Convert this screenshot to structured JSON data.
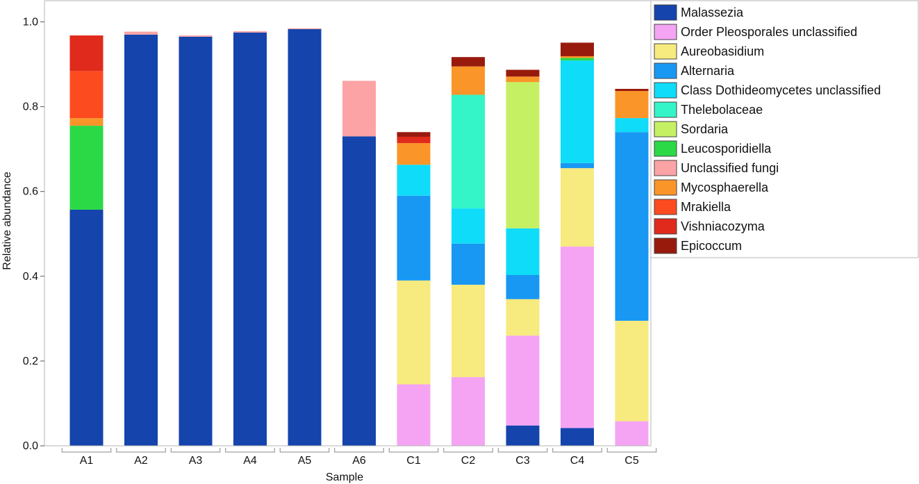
{
  "chart_data": {
    "type": "bar",
    "stacked": true,
    "xlabel": "Sample",
    "ylabel": "Relative abundance",
    "ylim": [
      0,
      1.05
    ],
    "yticks": [
      "0.0",
      "0.2",
      "0.4",
      "0.6",
      "0.8",
      "1.0"
    ],
    "legend_position": "right",
    "grid": false,
    "categories": [
      "A1",
      "A2",
      "A3",
      "A4",
      "A5",
      "A6",
      "C1",
      "C2",
      "C3",
      "C4",
      "C5"
    ],
    "series": [
      {
        "name": "Malassezia",
        "color": "#1444ac",
        "values": [
          0.557,
          0.97,
          0.965,
          0.975,
          0.983,
          0.73,
          0,
          0,
          0.048,
          0.042,
          0
        ]
      },
      {
        "name": "Order Pleosporales unclassified",
        "color": "#f5a4f3",
        "values": [
          0,
          0,
          0,
          0,
          0,
          0,
          0.145,
          0.162,
          0.212,
          0.428,
          0.058
        ]
      },
      {
        "name": "Aureobasidium",
        "color": "#f7ea7e",
        "values": [
          0,
          0,
          0,
          0,
          0,
          0,
          0.245,
          0.218,
          0.086,
          0.185,
          0.237
        ]
      },
      {
        "name": "Alternaria",
        "color": "#1898f3",
        "values": [
          0,
          0,
          0,
          0,
          0,
          0,
          0.2,
          0.097,
          0.057,
          0.012,
          0.445
        ]
      },
      {
        "name": "Class Dothideomycetes unclassified",
        "color": "#0fdcf8",
        "values": [
          0,
          0,
          0,
          0,
          0,
          0,
          0.073,
          0.083,
          0.11,
          0.242,
          0.033
        ]
      },
      {
        "name": "Thelebolaceae",
        "color": "#33f5c8",
        "values": [
          0,
          0,
          0,
          0,
          0,
          0,
          0,
          0.268,
          0,
          0,
          0
        ]
      },
      {
        "name": "Sordaria",
        "color": "#c6f063",
        "values": [
          0,
          0,
          0,
          0,
          0,
          0,
          0,
          0,
          0.345,
          0,
          0
        ]
      },
      {
        "name": "Leucosporidiella",
        "color": "#2bd947",
        "values": [
          0.198,
          0,
          0,
          0,
          0,
          0,
          0,
          0,
          0,
          0.006,
          0
        ]
      },
      {
        "name": "Unclassified fungi",
        "color": "#fca3a6",
        "values": [
          0,
          0.007,
          0.003,
          0.003,
          0.002,
          0.131,
          0,
          0,
          0,
          0,
          0
        ]
      },
      {
        "name": "Mycosphaerella",
        "color": "#fa9629",
        "values": [
          0.018,
          0,
          0,
          0,
          0,
          0,
          0.051,
          0.067,
          0.013,
          0.004,
          0.064
        ]
      },
      {
        "name": "Mrakiella",
        "color": "#fd4b20",
        "values": [
          0.111,
          0,
          0,
          0,
          0,
          0,
          0,
          0,
          0,
          0,
          0
        ]
      },
      {
        "name": "Vishniacozyma",
        "color": "#e02a1c",
        "values": [
          0.084,
          0,
          0,
          0,
          0,
          0,
          0.015,
          0,
          0,
          0,
          0
        ]
      },
      {
        "name": "Epicoccum",
        "color": "#981a0d",
        "values": [
          0,
          0,
          0,
          0,
          0,
          0,
          0.011,
          0.022,
          0.016,
          0.032,
          0.005
        ]
      }
    ]
  }
}
